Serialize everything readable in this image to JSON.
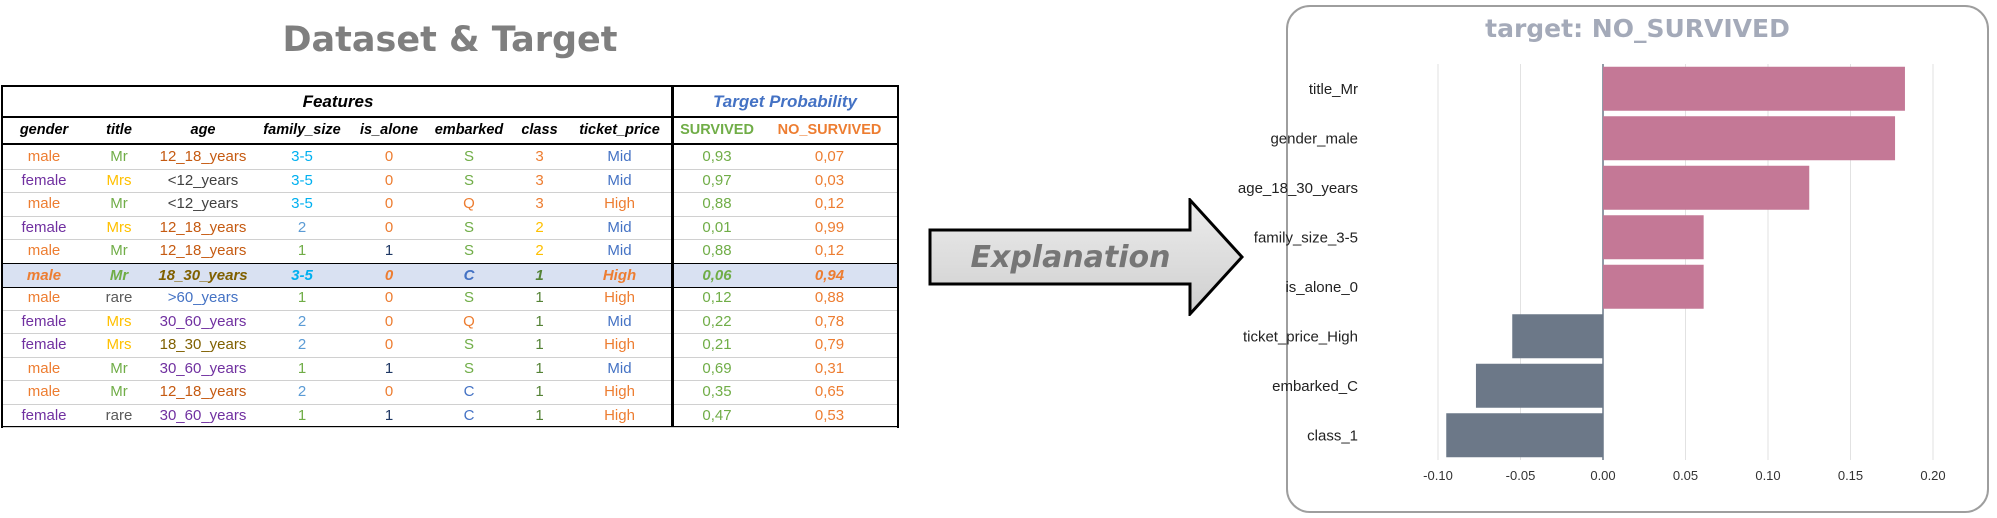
{
  "dataset": {
    "title": "Dataset & Target",
    "features_header": "Features",
    "target_header": "Target Probability",
    "columns": [
      "gender",
      "title",
      "age",
      "family_size",
      "is_alone",
      "embarked",
      "class",
      "ticket_price",
      "SURVIVED",
      "NO_SURVIVED"
    ],
    "rows": [
      [
        "male",
        "Mr",
        "12_18_years",
        "3-5",
        "0",
        "S",
        "3",
        "Mid",
        "0,93",
        "0,07"
      ],
      [
        "female",
        "Mrs",
        "<12_years",
        "3-5",
        "0",
        "S",
        "3",
        "Mid",
        "0,97",
        "0,03"
      ],
      [
        "male",
        "Mr",
        "<12_years",
        "3-5",
        "0",
        "Q",
        "3",
        "High",
        "0,88",
        "0,12"
      ],
      [
        "female",
        "Mrs",
        "12_18_years",
        "2",
        "0",
        "S",
        "2",
        "Mid",
        "0,01",
        "0,99"
      ],
      [
        "male",
        "Mr",
        "12_18_years",
        "1",
        "1",
        "S",
        "2",
        "Mid",
        "0,88",
        "0,12"
      ],
      [
        "male",
        "Mr",
        "18_30_years",
        "3-5",
        "0",
        "C",
        "1",
        "High",
        "0,06",
        "0,94"
      ],
      [
        "male",
        "rare",
        ">60_years",
        "1",
        "0",
        "S",
        "1",
        "High",
        "0,12",
        "0,88"
      ],
      [
        "female",
        "Mrs",
        "30_60_years",
        "2",
        "0",
        "Q",
        "1",
        "Mid",
        "0,22",
        "0,78"
      ],
      [
        "female",
        "Mrs",
        "18_30_years",
        "2",
        "0",
        "S",
        "1",
        "High",
        "0,21",
        "0,79"
      ],
      [
        "male",
        "Mr",
        "30_60_years",
        "1",
        "1",
        "S",
        "1",
        "Mid",
        "0,69",
        "0,31"
      ],
      [
        "male",
        "Mr",
        "12_18_years",
        "2",
        "0",
        "C",
        "1",
        "High",
        "0,35",
        "0,65"
      ],
      [
        "female",
        "rare",
        "30_60_years",
        "1",
        "1",
        "C",
        "1",
        "High",
        "0,47",
        "0,53"
      ]
    ],
    "highlighted_row": 5,
    "colors": {
      "male": "#ed7d31",
      "female": "#7030a0",
      "Mr": "#70ad47",
      "Mrs": "#ffc000",
      "rare": "#595959",
      "12_18_years": "#c55a11",
      "<12_years": "#404040",
      "18_30_years": "#806000",
      "30_60_years": "#7030a0",
      ">60_years": "#4472c4",
      "family_3-5": "#00b0f0",
      "family_2": "#5b9bd5",
      "family_1": "#70ad47",
      "alone_0": "#ed7d31",
      "alone_1": "#1f3864",
      "S": "#70ad47",
      "Q": "#ed7d31",
      "C": "#4472c4",
      "class_3": "#ed7d31",
      "class_2": "#ffc000",
      "class_1": "#548235",
      "Mid": "#4472c4",
      "High": "#ed7d31",
      "survived": "#70ad47",
      "no_survived": "#ed7d31"
    }
  },
  "arrow": {
    "label": "Explanation"
  },
  "chart_data": {
    "type": "bar",
    "orientation": "horizontal",
    "title": "target: NO_SURVIVED",
    "categories": [
      "title_Mr",
      "gender_male",
      "age_18_30_years",
      "family_size_3-5",
      "is_alone_0",
      "ticket_price_High",
      "embarked_C",
      "class_1"
    ],
    "values": [
      0.183,
      0.177,
      0.125,
      0.061,
      0.061,
      -0.055,
      -0.077,
      -0.095
    ],
    "xlim": [
      -0.1,
      0.2
    ],
    "xticks": [
      "-0.10",
      "-0.05",
      "0.00",
      "0.05",
      "0.10",
      "0.15",
      "0.20"
    ],
    "grid": true,
    "colors": {
      "positive": "#c47896",
      "negative": "#6c7888"
    }
  }
}
